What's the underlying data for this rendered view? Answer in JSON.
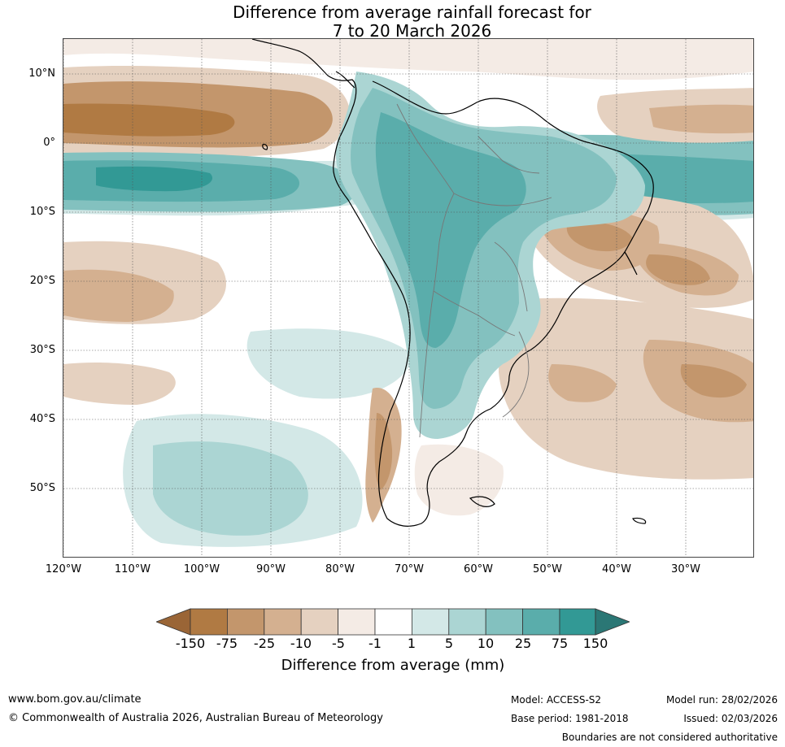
{
  "title": {
    "line1": "Difference from average rainfall forecast for",
    "line2": "7 to 20 March 2026"
  },
  "map": {
    "region": "South America",
    "lat_labels": [
      "10°N",
      "0°",
      "10°S",
      "20°S",
      "30°S",
      "40°S",
      "50°S"
    ],
    "lon_labels": [
      "120°W",
      "110°W",
      "100°W",
      "90°W",
      "80°W",
      "70°W",
      "60°W",
      "50°W",
      "40°W",
      "30°W"
    ]
  },
  "legend": {
    "title": "Difference from average (mm)",
    "ticks": [
      "-150",
      "-75",
      "-25",
      "-10",
      "-5",
      "-1",
      "1",
      "5",
      "10",
      "25",
      "75",
      "150"
    ],
    "colors": [
      "#9a6536",
      "#b07a43",
      "#c3966c",
      "#d4b090",
      "#e5d1c0",
      "#f4ebe5",
      "#ffffff",
      "#d3e8e7",
      "#abd5d3",
      "#83c1bf",
      "#5aadab",
      "#329995",
      "#2b7775"
    ]
  },
  "footer": {
    "website": "www.bom.gov.au/climate",
    "copyright": "© Commonwealth of Australia 2026, Australian Bureau of Meteorology",
    "model": "Model: ACCESS-S2",
    "base_period": "Base period: 1981-2018",
    "model_run": "Model run: 28/02/2026",
    "issued": "Issued: 02/03/2026",
    "boundaries": "Boundaries are not considered authoritative"
  }
}
